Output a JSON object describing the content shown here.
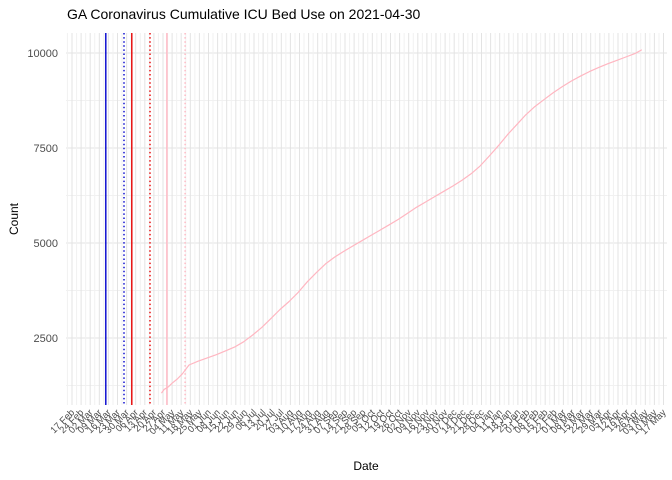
{
  "chart_data": {
    "type": "line",
    "title": "GA Coronavirus Cumulative ICU Bed Use on 2021-04-30",
    "xlabel": "Date",
    "ylabel": "Count",
    "legend": false,
    "grid": true,
    "background": "#FFFFFF",
    "colors": {
      "curve": "#FFB6C1",
      "event_blue": "#0000CD",
      "event_red": "#E60000",
      "event_pink": "#FFB6C1",
      "grid_major": "#E3E3E3",
      "grid_minor": "#F1F1F1",
      "tick_label": "#4D4D4D",
      "title_color": "#000000"
    },
    "y_axis": {
      "ticks": [
        2500,
        5000,
        7500,
        10000
      ],
      "tick_labels": [
        "2500",
        "5000",
        "7500",
        "10000"
      ],
      "minor_ticks": [
        1250,
        3750,
        6250,
        8750
      ],
      "ylim": [
        765,
        10525
      ]
    },
    "x_axis": {
      "origin": "2020-02-17",
      "end": "2021-05-17",
      "major_break_days": 7,
      "tick_labels": [
        "17 Feb",
        "24 Feb",
        "02 Mar",
        "09 Mar",
        "16 Mar",
        "23 Mar",
        "30 Mar",
        "06 Apr",
        "13 Apr",
        "20 Apr",
        "27 Apr",
        "04 May",
        "11 May",
        "18 May",
        "25 May",
        "01 Jun",
        "08 Jun",
        "15 Jun",
        "22 Jun",
        "29 Jun",
        "06 Jul",
        "13 Jul",
        "20 Jul",
        "27 Jul",
        "03 Aug",
        "10 Aug",
        "17 Aug",
        "24 Aug",
        "31 Aug",
        "07 Sep",
        "14 Sep",
        "21 Sep",
        "28 Sep",
        "05 Oct",
        "12 Oct",
        "19 Oct",
        "26 Oct",
        "02 Nov",
        "09 Nov",
        "16 Nov",
        "23 Nov",
        "30 Nov",
        "07 Dec",
        "14 Dec",
        "21 Dec",
        "28 Dec",
        "04 Jan",
        "11 Jan",
        "18 Jan",
        "25 Jan",
        "01 Feb",
        "08 Feb",
        "15 Feb",
        "22 Feb",
        "01 Mar",
        "08 Mar",
        "15 Mar",
        "22 Mar",
        "29 Mar",
        "05 Apr",
        "12 Apr",
        "19 Apr",
        "26 Apr",
        "03 May",
        "10 May",
        "17 May"
      ]
    },
    "event_lines": [
      {
        "date": "2020-03-14",
        "color": "#0000CD",
        "style": "solid"
      },
      {
        "date": "2020-03-28",
        "color": "#0000CD",
        "style": "dotted"
      },
      {
        "date": "2020-04-03",
        "color": "#E60000",
        "style": "solid"
      },
      {
        "date": "2020-04-17",
        "color": "#E60000",
        "style": "dotted"
      },
      {
        "date": "2020-04-30",
        "color": "#FFB6C1",
        "style": "solid"
      },
      {
        "date": "2020-05-14",
        "color": "#FFB6C1",
        "style": "dotted"
      }
    ],
    "series": [
      {
        "name": "cumulative-icu-bed-use",
        "color": "#FFB6C1",
        "points": [
          [
            "2020-04-26",
            1060
          ],
          [
            "2020-04-28",
            1150
          ],
          [
            "2020-05-01",
            1210
          ],
          [
            "2020-05-04",
            1310
          ],
          [
            "2020-05-08",
            1420
          ],
          [
            "2020-05-12",
            1560
          ],
          [
            "2020-05-17",
            1790
          ],
          [
            "2020-05-24",
            1890
          ],
          [
            "2020-05-31",
            1975
          ],
          [
            "2020-06-07",
            2060
          ],
          [
            "2020-06-14",
            2160
          ],
          [
            "2020-06-21",
            2260
          ],
          [
            "2020-06-28",
            2400
          ],
          [
            "2020-07-05",
            2580
          ],
          [
            "2020-07-12",
            2780
          ],
          [
            "2020-07-19",
            3010
          ],
          [
            "2020-07-26",
            3250
          ],
          [
            "2020-08-02",
            3460
          ],
          [
            "2020-08-09",
            3700
          ],
          [
            "2020-08-16",
            3980
          ],
          [
            "2020-08-23",
            4220
          ],
          [
            "2020-08-30",
            4450
          ],
          [
            "2020-09-06",
            4630
          ],
          [
            "2020-09-13",
            4780
          ],
          [
            "2020-09-20",
            4920
          ],
          [
            "2020-09-27",
            5060
          ],
          [
            "2020-10-04",
            5200
          ],
          [
            "2020-10-11",
            5340
          ],
          [
            "2020-10-18",
            5480
          ],
          [
            "2020-10-25",
            5620
          ],
          [
            "2020-11-01",
            5780
          ],
          [
            "2020-11-08",
            5940
          ],
          [
            "2020-11-15",
            6080
          ],
          [
            "2020-11-22",
            6220
          ],
          [
            "2020-11-29",
            6360
          ],
          [
            "2020-12-06",
            6500
          ],
          [
            "2020-12-13",
            6650
          ],
          [
            "2020-12-20",
            6820
          ],
          [
            "2020-12-27",
            7030
          ],
          [
            "2021-01-03",
            7290
          ],
          [
            "2021-01-10",
            7560
          ],
          [
            "2021-01-17",
            7850
          ],
          [
            "2021-01-24",
            8110
          ],
          [
            "2021-01-31",
            8370
          ],
          [
            "2021-02-07",
            8590
          ],
          [
            "2021-02-14",
            8770
          ],
          [
            "2021-02-21",
            8950
          ],
          [
            "2021-02-28",
            9110
          ],
          [
            "2021-03-07",
            9260
          ],
          [
            "2021-03-14",
            9390
          ],
          [
            "2021-03-21",
            9510
          ],
          [
            "2021-03-28",
            9615
          ],
          [
            "2021-04-04",
            9715
          ],
          [
            "2021-04-11",
            9805
          ],
          [
            "2021-04-18",
            9895
          ],
          [
            "2021-04-25",
            9985
          ],
          [
            "2021-04-30",
            10080
          ]
        ]
      }
    ]
  }
}
